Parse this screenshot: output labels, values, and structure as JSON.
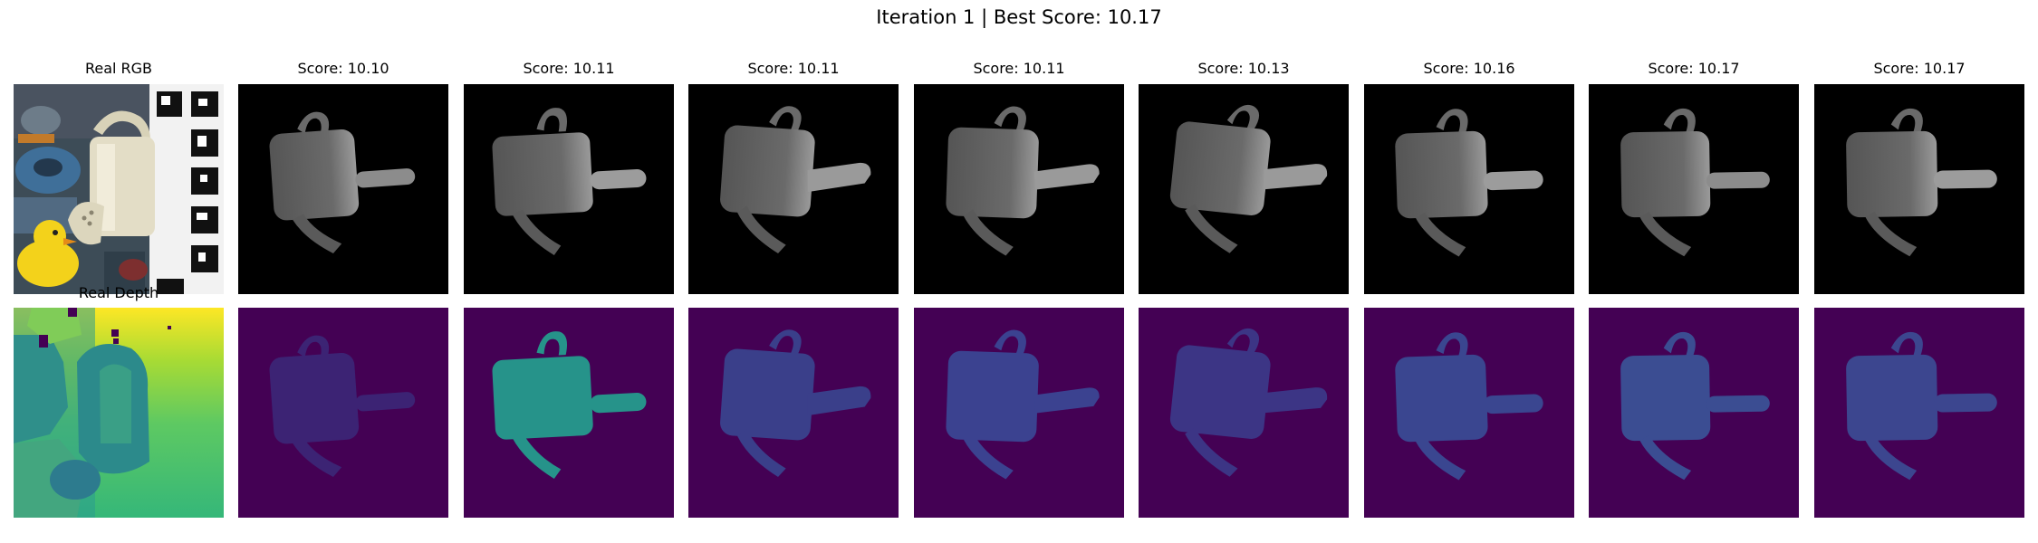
{
  "figure": {
    "suptitle": "Iteration 1 | Best Score: 10.17"
  },
  "columns": [
    {
      "title": "Real RGB",
      "kind": "real"
    },
    {
      "title": "Score: 10.10",
      "score": 10.1
    },
    {
      "title": "Score: 10.11",
      "score": 10.11
    },
    {
      "title": "Score: 10.11",
      "score": 10.11
    },
    {
      "title": "Score: 10.11",
      "score": 10.11
    },
    {
      "title": "Score: 10.13",
      "score": 10.13
    },
    {
      "title": "Score: 10.16",
      "score": 10.16
    },
    {
      "title": "Score: 10.17",
      "score": 10.17
    },
    {
      "title": "Score: 10.17",
      "score": 10.17
    }
  ],
  "depth_row": {
    "title": "Real Depth"
  },
  "colors": {
    "render_background": "#000000",
    "render_object": "#5e5e5e",
    "depth_background": "#440154",
    "depth_object_default": "#3b3f85",
    "depth_object_highlight": "#26938a"
  }
}
